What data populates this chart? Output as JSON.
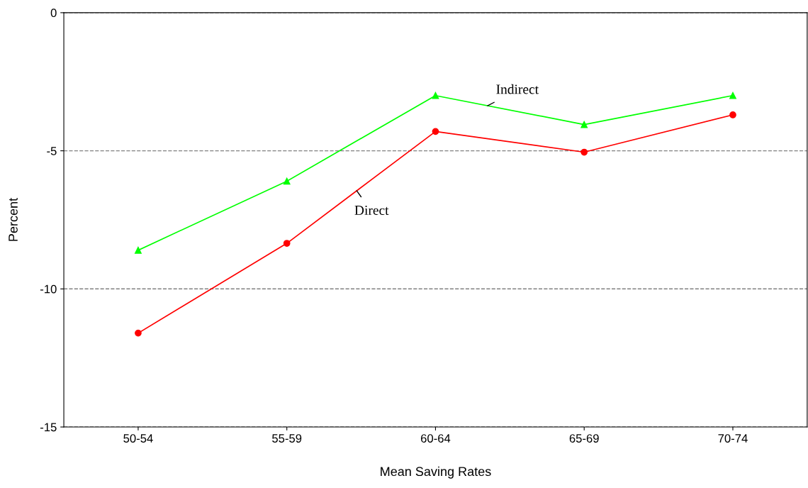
{
  "chart_data": {
    "type": "line",
    "xlabel": "Mean Saving Rates",
    "ylabel": "Percent",
    "categories": [
      "50-54",
      "55-59",
      "60-64",
      "65-69",
      "70-74"
    ],
    "series": [
      {
        "name": "Indirect",
        "color": "#00ff00",
        "marker": "triangle",
        "values": [
          -8.6,
          -6.1,
          -3.0,
          -4.05,
          -3.0
        ]
      },
      {
        "name": "Direct",
        "color": "#ff0000",
        "marker": "circle",
        "values": [
          -11.6,
          -8.35,
          -4.3,
          -5.05,
          -3.7
        ]
      }
    ],
    "ylim": [
      -15,
      0
    ],
    "yticks": [
      -15,
      -10,
      -5,
      0
    ],
    "grid": "y",
    "legend": false,
    "line_style": "solid"
  }
}
